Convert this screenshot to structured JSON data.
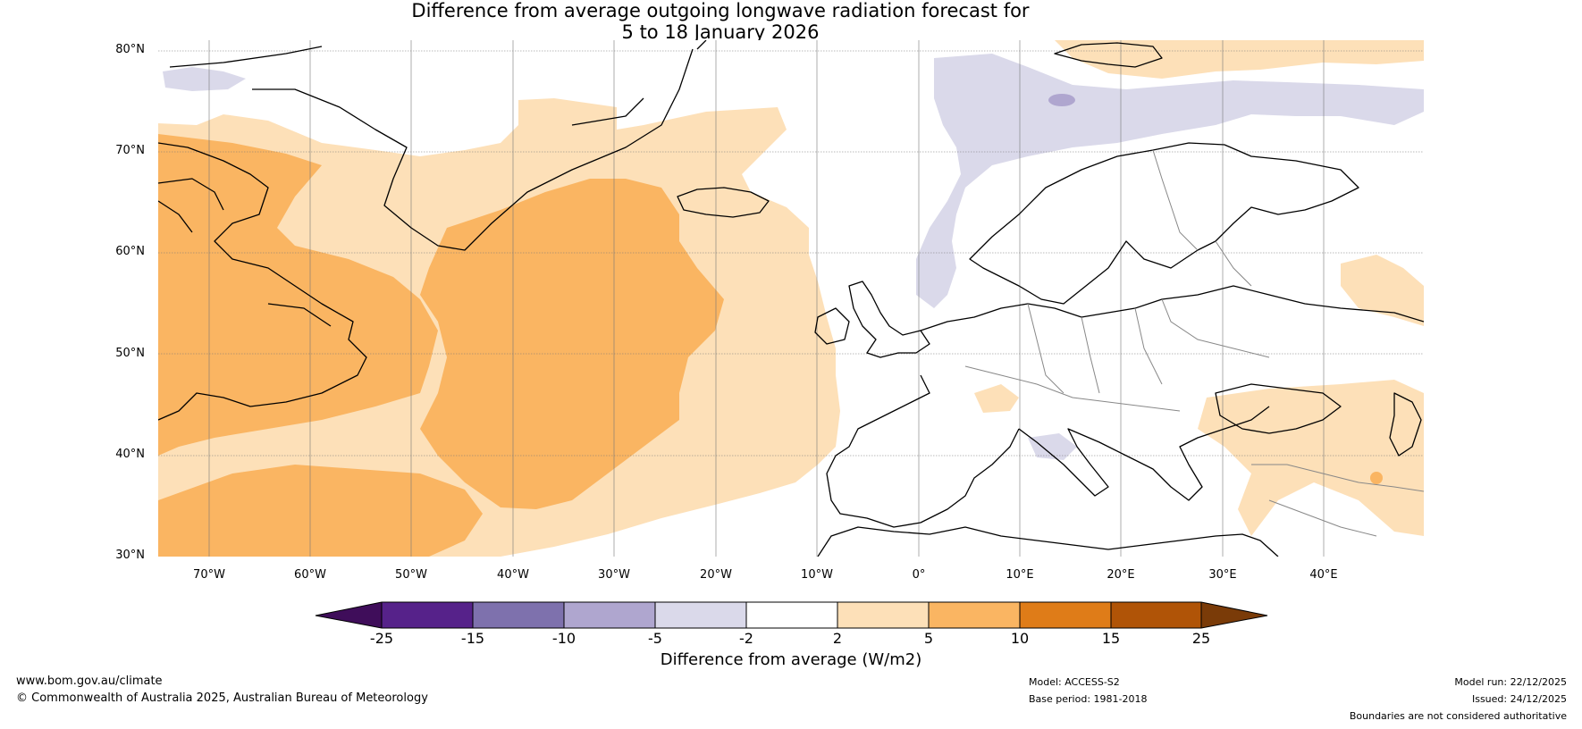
{
  "title": {
    "line1": "Difference from average outgoing longwave radiation forecast for",
    "line2": "5 to 18 January 2026"
  },
  "map": {
    "lat_labels": [
      "80°N",
      "70°N",
      "60°N",
      "50°N",
      "40°N",
      "30°N"
    ],
    "lon_labels": [
      "70°W",
      "60°W",
      "50°W",
      "40°W",
      "30°W",
      "20°W",
      "10°W",
      "0°",
      "10°E",
      "20°E",
      "30°E",
      "40°E"
    ],
    "lat_range": [
      30,
      80
    ],
    "lon_range": [
      -75,
      50
    ]
  },
  "colorbar": {
    "title": "Difference from average (W/m2)",
    "ticks": [
      "-25",
      "-15",
      "-10",
      "-5",
      "-2",
      "2",
      "5",
      "10",
      "15",
      "25"
    ],
    "colors": [
      "#3f0d5a",
      "#56228a",
      "#7e71ad",
      "#afa6cf",
      "#dad9ea",
      "#ffffff",
      "#fde0b8",
      "#fab562",
      "#df7c18",
      "#b05407",
      "#7a3b08"
    ]
  },
  "colors": {
    "light_orange": "#fde0b8",
    "mid_orange": "#fab562",
    "light_purple": "#dad9ea",
    "mid_purple": "#afa6cf"
  },
  "footer": {
    "website": "www.bom.gov.au/climate",
    "copyright": "© Commonwealth of Australia 2025, Australian Bureau of Meteorology",
    "model": "Model: ACCESS-S2",
    "base_period": "Base period: 1981-2018",
    "model_run": "Model run: 22/12/2025",
    "issued": "Issued: 24/12/2025",
    "disclaimer": "Boundaries are not considered authoritative"
  }
}
